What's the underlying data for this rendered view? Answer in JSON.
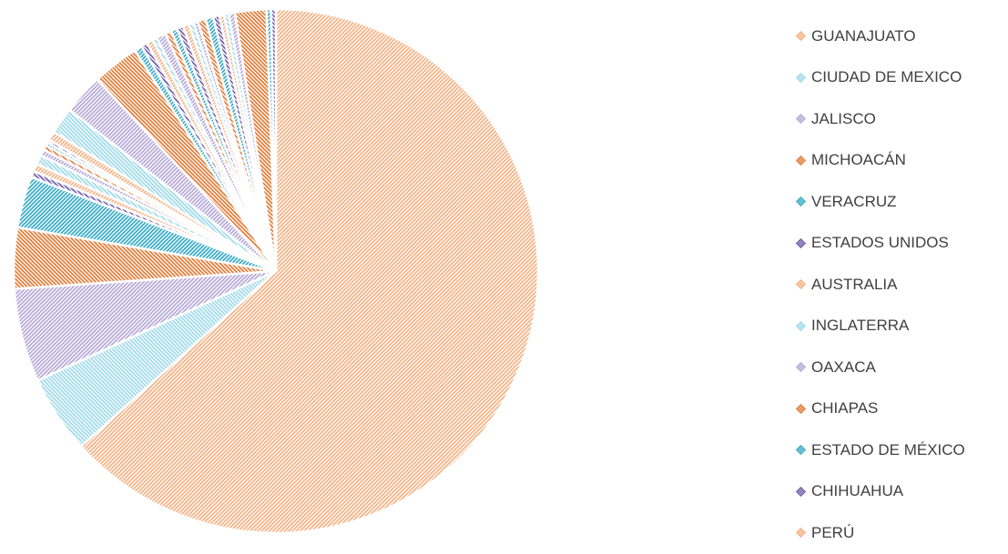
{
  "chart_data": {
    "type": "pie",
    "title": "",
    "legend_position": "right",
    "start_angle_deg": 0,
    "direction": "clockwise",
    "categories": [
      "GUANAJUATO",
      "CIUDAD DE MEXICO",
      "JALISCO",
      "MICHOACÁN",
      "VERACRUZ",
      "ESTADOS UNIDOS",
      "AUSTRALIA",
      "INGLATERRA",
      "OAXACA",
      "CHIAPAS",
      "ESTADO DE MÉXICO",
      "CHIHUAHUA",
      "PERÚ"
    ],
    "values": [
      65.8,
      5.0,
      6.0,
      3.9,
      3.3,
      0.4,
      0.5,
      0.6,
      0.4,
      0.3,
      0.2,
      0.2,
      0.6
    ],
    "other_slices": [
      1.7,
      2.6,
      3.0,
      0.5,
      0.4,
      0.4,
      0.3,
      0.6,
      0.4,
      0.4,
      0.4,
      0.4,
      0.3,
      0.3,
      0.5,
      0.5,
      0.4,
      0.3,
      0.3,
      0.4,
      2.0,
      0.3,
      0.3
    ],
    "palette": [
      "#f4b183",
      "#9dd9e8",
      "#b4a7d6",
      "#e07a35",
      "#35a9c4",
      "#6f5ba8"
    ]
  }
}
